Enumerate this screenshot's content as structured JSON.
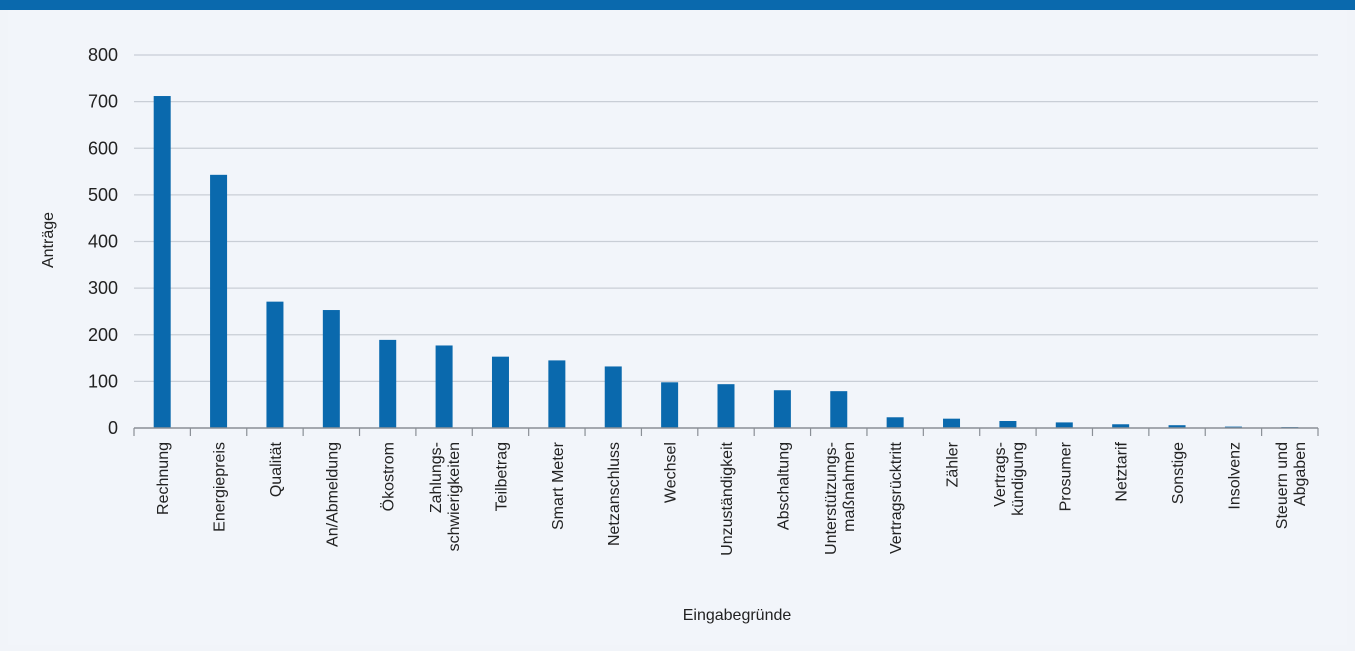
{
  "chart_data": {
    "type": "bar",
    "xlabel": "Eingabegründe",
    "ylabel": "Anträge",
    "ylim": [
      0,
      800
    ],
    "yticks": [
      0,
      100,
      200,
      300,
      400,
      500,
      600,
      700,
      800
    ],
    "grid": true,
    "bar_color": "#0a69ad",
    "categories": [
      [
        "Rechnung"
      ],
      [
        "Energiepreis"
      ],
      [
        "Qualität"
      ],
      [
        "An/Abmeldung"
      ],
      [
        "Ökostrom"
      ],
      [
        "Zahlungs-",
        "schwierigkeiten"
      ],
      [
        "Teilbetrag"
      ],
      [
        "Smart Meter"
      ],
      [
        "Netzanschluss"
      ],
      [
        "Wechsel"
      ],
      [
        "Unzuständigkeit"
      ],
      [
        "Abschaltung"
      ],
      [
        "Unterstützungs-",
        "maßnahmen"
      ],
      [
        "Vertragsrücktritt"
      ],
      [
        "Zähler"
      ],
      [
        "Vertrags-",
        "kündigung"
      ],
      [
        "Prosumer"
      ],
      [
        "Netztarif"
      ],
      [
        "Sonstige"
      ],
      [
        "Insolvenz"
      ],
      [
        "Steuern und",
        "Abgaben"
      ]
    ],
    "values": [
      712,
      543,
      271,
      253,
      189,
      177,
      153,
      145,
      132,
      98,
      94,
      81,
      79,
      23,
      20,
      15,
      12,
      8,
      6,
      3,
      2
    ]
  }
}
